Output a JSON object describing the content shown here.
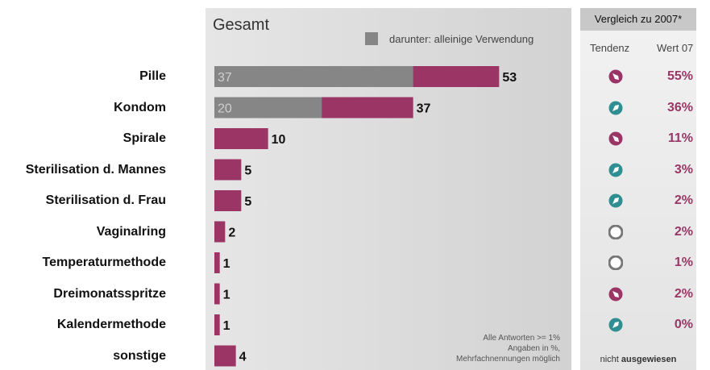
{
  "chart_data": {
    "type": "bar",
    "title": "Gesamt",
    "categories": [
      "Pille",
      "Kondom",
      "Spirale",
      "Sterilisation d. Mannes",
      "Sterilisation d. Frau",
      "Vaginalring",
      "Temperaturmethode",
      "Dreimonatsspritze",
      "Kalendermethode",
      "sonstige"
    ],
    "series": [
      {
        "name": "Gesamt",
        "values": [
          53,
          37,
          10,
          5,
          5,
          2,
          1,
          1,
          1,
          4
        ]
      },
      {
        "name": "darunter: alleinige Verwendung",
        "values": [
          37,
          20,
          null,
          null,
          null,
          null,
          null,
          null,
          null,
          null
        ]
      }
    ],
    "xlim": [
      0,
      66
    ],
    "colors": {
      "total": "#9b3566",
      "alleinige": "#868686"
    },
    "legend": {
      "label": "darunter:  alleinige Verwendung",
      "position": "top-right"
    },
    "footnote": [
      "Alle Antworten >= 1%",
      "Angaben in %,",
      "Mehrfachnennungen möglich"
    ]
  },
  "comparison": {
    "header": "Vergleich zu 2007*",
    "col_tendenz": "Tendenz",
    "col_wert": "Wert 07",
    "rows": [
      {
        "tendenz": "down",
        "wert": "55%"
      },
      {
        "tendenz": "up",
        "wert": "36%"
      },
      {
        "tendenz": "down",
        "wert": "11%"
      },
      {
        "tendenz": "up",
        "wert": "3%"
      },
      {
        "tendenz": "up",
        "wert": "2%"
      },
      {
        "tendenz": "neutral",
        "wert": "2%"
      },
      {
        "tendenz": "neutral",
        "wert": "1%"
      },
      {
        "tendenz": "down",
        "wert": "2%"
      },
      {
        "tendenz": "up",
        "wert": "0%"
      }
    ],
    "not_shown_prefix": "nicht ",
    "not_shown_bold": "ausgewiesen",
    "icon_colors": {
      "down": "#9b3566",
      "up": "#2f8e91",
      "neutral": "#777777"
    }
  }
}
